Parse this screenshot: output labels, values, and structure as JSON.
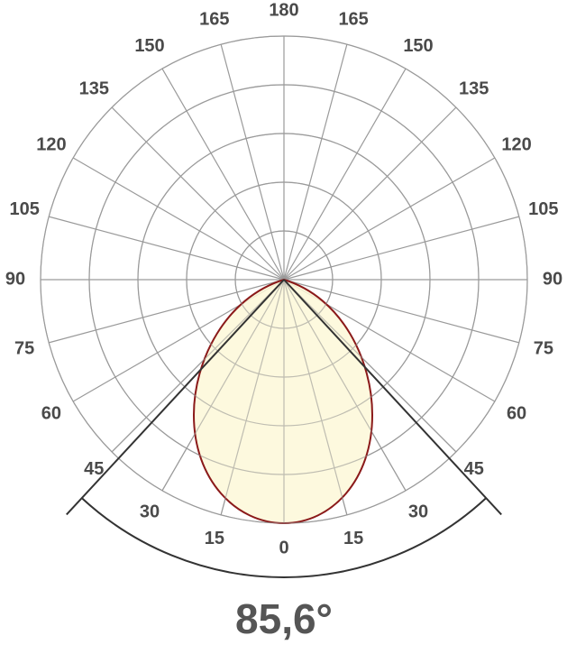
{
  "diagram": {
    "bottom_label": "0",
    "top_label": "180",
    "left_labels": [
      "15",
      "30",
      "45",
      "60",
      "75",
      "90",
      "105",
      "120",
      "135",
      "150",
      "165"
    ],
    "right_labels": [
      "15",
      "30",
      "45",
      "60",
      "75",
      "90",
      "105",
      "120",
      "135",
      "150",
      "165"
    ],
    "beam_angle": "85,6°"
  }
}
